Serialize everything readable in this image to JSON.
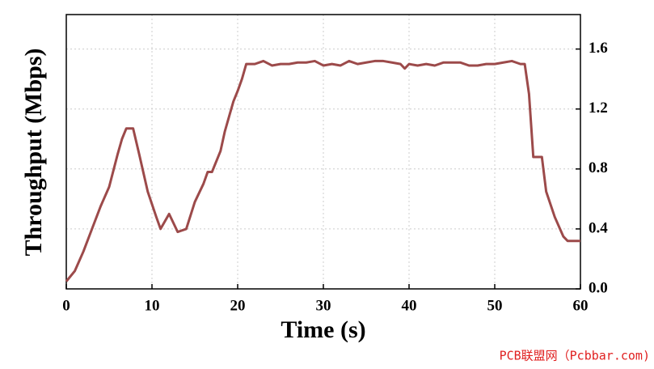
{
  "chart_data": {
    "type": "line",
    "xlabel": "Time (s)",
    "ylabel": "Throughput (Mbps)",
    "annotation": "PCB联盟网（Pcbbar.com)",
    "color": "#9c4a4a",
    "grid": true,
    "xlim": [
      0,
      60
    ],
    "xticks": [
      0,
      10,
      20,
      30,
      40,
      50,
      60
    ],
    "ylim": [
      0,
      1.83
    ],
    "yticks": [
      {
        "value": 0,
        "label": "0.0"
      },
      0.4,
      0.8,
      1.2,
      1.6
    ],
    "x": [
      0,
      1,
      2,
      3,
      4,
      5,
      6,
      6.5,
      7,
      7.8,
      8.5,
      9.5,
      10.5,
      11,
      11.5,
      12,
      12.5,
      13,
      14,
      15,
      16,
      16.5,
      17,
      18,
      18.5,
      19,
      19.5,
      20,
      20.5,
      21,
      22,
      23,
      24,
      25,
      26,
      27,
      28,
      29,
      30,
      31,
      32,
      33,
      34,
      35,
      36,
      37,
      38,
      39,
      39.5,
      40,
      41,
      42,
      43,
      44,
      45,
      46,
      47,
      48,
      49,
      50,
      51,
      52,
      53,
      53.5,
      54,
      54.5,
      55,
      55.5,
      56,
      57,
      58,
      58.5,
      60
    ],
    "values": [
      0.05,
      0.12,
      0.25,
      0.4,
      0.55,
      0.68,
      0.9,
      1.0,
      1.07,
      1.07,
      0.9,
      0.65,
      0.48,
      0.4,
      0.45,
      0.5,
      0.44,
      0.38,
      0.4,
      0.58,
      0.7,
      0.78,
      0.78,
      0.92,
      1.05,
      1.15,
      1.25,
      1.32,
      1.4,
      1.5,
      1.5,
      1.52,
      1.49,
      1.5,
      1.5,
      1.51,
      1.51,
      1.52,
      1.49,
      1.5,
      1.49,
      1.52,
      1.5,
      1.51,
      1.52,
      1.52,
      1.51,
      1.5,
      1.47,
      1.5,
      1.49,
      1.5,
      1.49,
      1.51,
      1.51,
      1.51,
      1.49,
      1.49,
      1.5,
      1.5,
      1.51,
      1.52,
      1.5,
      1.5,
      1.3,
      0.88,
      0.88,
      0.88,
      0.65,
      0.48,
      0.35,
      0.32,
      0.32
    ]
  }
}
